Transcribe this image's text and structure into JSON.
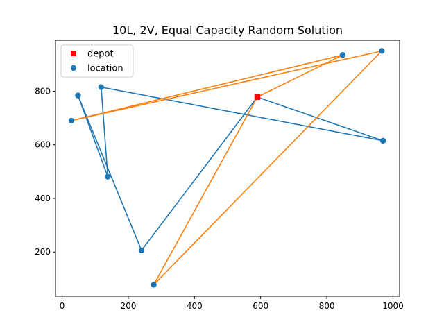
{
  "chart_data": {
    "type": "scatter",
    "title": "10L, 2V, Equal Capacity Random Solution",
    "xlabel": "",
    "ylabel": "",
    "xlim": [
      -20,
      1020
    ],
    "ylim": [
      35,
      990
    ],
    "xticks": [
      0,
      200,
      400,
      600,
      800,
      1000
    ],
    "yticks": [
      200,
      400,
      600,
      800
    ],
    "grid": false,
    "legend": {
      "placement": "top-left",
      "entries": [
        {
          "label": "depot",
          "marker": "square",
          "color": "#ff0000"
        },
        {
          "label": "location",
          "marker": "circle",
          "color": "#1f77b4"
        }
      ]
    },
    "depot": {
      "x": 590,
      "y": 778
    },
    "locations": [
      {
        "x": 28,
        "y": 690
      },
      {
        "x": 48,
        "y": 784
      },
      {
        "x": 118,
        "y": 815
      },
      {
        "x": 138,
        "y": 481
      },
      {
        "x": 240,
        "y": 206
      },
      {
        "x": 277,
        "y": 78
      },
      {
        "x": 848,
        "y": 935
      },
      {
        "x": 966,
        "y": 950
      },
      {
        "x": 970,
        "y": 615
      }
    ],
    "series": [
      {
        "color": "#1f77b4",
        "path": [
          {
            "x": 590,
            "y": 778
          },
          {
            "x": 240,
            "y": 206
          },
          {
            "x": 48,
            "y": 784
          },
          {
            "x": 138,
            "y": 481
          },
          {
            "x": 118,
            "y": 815
          },
          {
            "x": 970,
            "y": 615
          },
          {
            "x": 590,
            "y": 778
          }
        ]
      },
      {
        "color": "#ff7f0e",
        "path": [
          {
            "x": 590,
            "y": 778
          },
          {
            "x": 848,
            "y": 935
          },
          {
            "x": 28,
            "y": 690
          },
          {
            "x": 966,
            "y": 950
          },
          {
            "x": 277,
            "y": 78
          },
          {
            "x": 590,
            "y": 778
          }
        ]
      }
    ]
  }
}
